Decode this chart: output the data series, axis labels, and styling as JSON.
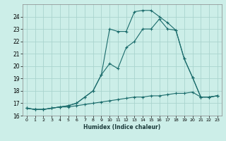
{
  "xlabel": "Humidex (Indice chaleur)",
  "background_color": "#cceee8",
  "grid_color": "#aad4ce",
  "line_color": "#1a6b6b",
  "xlim": [
    -0.5,
    23.5
  ],
  "ylim": [
    16,
    25
  ],
  "yticks": [
    16,
    17,
    18,
    19,
    20,
    21,
    22,
    23,
    24
  ],
  "xticks": [
    0,
    1,
    2,
    3,
    4,
    5,
    6,
    7,
    8,
    9,
    10,
    11,
    12,
    13,
    14,
    15,
    16,
    17,
    18,
    19,
    20,
    21,
    22,
    23
  ],
  "series": [
    {
      "x": [
        0,
        1,
        2,
        3,
        4,
        5,
        6,
        7,
        8,
        9,
        10,
        11,
        12,
        13,
        14,
        15,
        16,
        17,
        18,
        19,
        20,
        21,
        22,
        23
      ],
      "y": [
        16.6,
        16.5,
        16.5,
        16.6,
        16.7,
        16.7,
        16.8,
        16.9,
        17.0,
        17.1,
        17.2,
        17.3,
        17.4,
        17.5,
        17.5,
        17.6,
        17.6,
        17.7,
        17.8,
        17.8,
        17.9,
        17.5,
        17.5,
        17.6
      ]
    },
    {
      "x": [
        0,
        1,
        2,
        3,
        4,
        5,
        6,
        7,
        8,
        9,
        10,
        11,
        12,
        13,
        14,
        15,
        16,
        17,
        18,
        19,
        20,
        21,
        22,
        23
      ],
      "y": [
        16.6,
        16.5,
        16.5,
        16.6,
        16.7,
        16.8,
        17.0,
        17.5,
        18.0,
        19.3,
        20.2,
        19.8,
        21.5,
        22.0,
        23.0,
        23.0,
        23.8,
        23.0,
        22.9,
        20.6,
        19.1,
        17.5,
        17.5,
        17.6
      ]
    },
    {
      "x": [
        0,
        1,
        2,
        3,
        4,
        5,
        6,
        7,
        8,
        9,
        10,
        11,
        12,
        13,
        14,
        15,
        16,
        17,
        18,
        19,
        20,
        21,
        22,
        23
      ],
      "y": [
        16.6,
        16.5,
        16.5,
        16.6,
        16.7,
        16.8,
        17.0,
        17.5,
        18.0,
        19.3,
        23.0,
        22.8,
        22.8,
        24.4,
        24.5,
        24.5,
        24.0,
        23.5,
        22.9,
        20.6,
        19.1,
        17.5,
        17.5,
        17.6
      ]
    }
  ]
}
